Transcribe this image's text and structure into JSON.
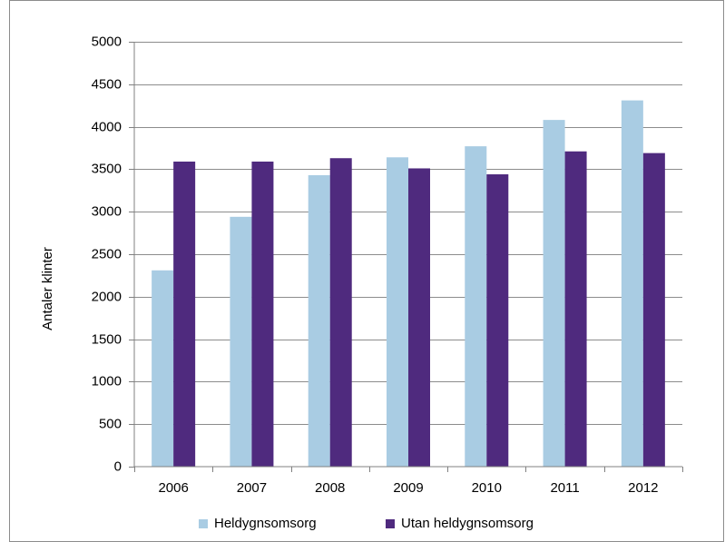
{
  "chart_data": {
    "type": "bar",
    "categories": [
      "2006",
      "2007",
      "2008",
      "2009",
      "2010",
      "2011",
      "2012"
    ],
    "series": [
      {
        "name": "Heldygnsomsorg",
        "color": "#a9cce3",
        "values": [
          2310,
          2940,
          3430,
          3640,
          3770,
          4080,
          4310
        ]
      },
      {
        "name": "Utan heldygnsomsorg",
        "color": "#4f2a7e",
        "values": [
          3590,
          3590,
          3630,
          3510,
          3440,
          3710,
          3690
        ]
      }
    ],
    "title": "",
    "xlabel": "",
    "ylabel": "Antaler klinter",
    "ylim": [
      0,
      5000
    ],
    "yticks": [
      0,
      500,
      1000,
      1500,
      2000,
      2500,
      3000,
      3500,
      4000,
      4500,
      5000
    ],
    "grid": true,
    "legend_position": "bottom"
  }
}
